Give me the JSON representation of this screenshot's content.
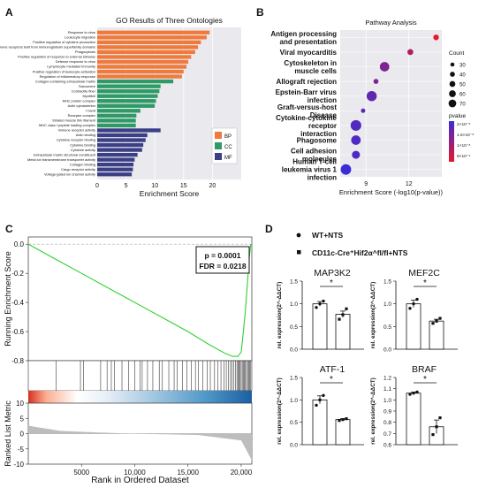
{
  "chart_data": [
    {
      "panel": "A",
      "type": "bar",
      "orientation": "horizontal",
      "title": "GO Results of Three Ontologies",
      "xlabel": "Enrichment Score",
      "xlim": [
        0,
        25
      ],
      "xticks": [
        0,
        5,
        10,
        15,
        20
      ],
      "legend": [
        {
          "label": "BP",
          "color": "#f07a3b"
        },
        {
          "label": "CC",
          "color": "#2e9a66"
        },
        {
          "label": "MF",
          "color": "#3b3f85"
        }
      ],
      "categories": [
        "Response to virus",
        "Leukocyte migration",
        "Positive regulation of cytokine production",
        "Adaptive immune response based on somatic recombination of immune receptors built from immunoglobulin superfamily domains",
        "Phagocytosis",
        "Positive regulation of response to external stimulus",
        "Defense response to virus",
        "Lymphocyte mediated immunity",
        "Positive regulation of leukocyte activation",
        "Regulation of inflammatory response",
        "Collagen-containing extracellular matrix",
        "Sarcomere",
        "Contractile fiber",
        "Myofibril",
        "MHC protein complex",
        "Actin cytoskeleton",
        "I band",
        "Receptor complex",
        "Striated muscle thin filament",
        "MHC class I peptide loading complex",
        "Immune receptor activity",
        "Actin binding",
        "Cytokine receptor binding",
        "Cytokine binding",
        "Cytokine activity",
        "Extracellular matrix structural constituent",
        "Metal ion transmembrane transporter activity",
        "Collagen binding",
        "Cargo receptor activity",
        "Voltage-gated ion channel activity"
      ],
      "groups": [
        "BP",
        "BP",
        "BP",
        "BP",
        "BP",
        "BP",
        "BP",
        "BP",
        "BP",
        "BP",
        "CC",
        "CC",
        "CC",
        "CC",
        "CC",
        "CC",
        "CC",
        "CC",
        "CC",
        "CC",
        "MF",
        "MF",
        "MF",
        "MF",
        "MF",
        "MF",
        "MF",
        "MF",
        "MF",
        "MF"
      ],
      "values": [
        19.5,
        19.0,
        18.0,
        17.5,
        17.0,
        16.3,
        15.8,
        15.5,
        15.0,
        14.7,
        13.2,
        11.0,
        10.8,
        10.5,
        10.2,
        10.0,
        7.5,
        6.8,
        6.7,
        6.7,
        11.0,
        8.7,
        8.4,
        8.0,
        7.8,
        7.0,
        6.5,
        6.3,
        6.2,
        6.0
      ]
    },
    {
      "panel": "B",
      "type": "scatter",
      "title": "Pathway Analysis",
      "xlabel": "Enrichment Score (-log10(p-value))",
      "xlim": [
        7.2,
        14.3
      ],
      "xticks": [
        9,
        12
      ],
      "categories": [
        "Antigen processing and presentation",
        "Viral myocarditis",
        "Cytoskeleton in muscle cells",
        "Allograft rejection",
        "Epstein-Barr virus infection",
        "Graft-versus-host Disease",
        "Cytokine-cytokine receptor interaction",
        "Phagosome",
        "Cell adhesion molecules",
        "Human T-cell leukemia virus 1 infection"
      ],
      "x": [
        13.9,
        12.1,
        10.3,
        9.7,
        9.4,
        8.8,
        8.3,
        8.3,
        8.3,
        7.6
      ],
      "count": [
        22,
        24,
        48,
        18,
        52,
        14,
        56,
        48,
        38,
        54
      ],
      "pvalue_exp": [
        -14,
        -12,
        -10,
        -10,
        -9,
        -9,
        -8.4,
        -8.3,
        -8.3,
        -7.6
      ],
      "size_legend": {
        "title": "Count",
        "values": [
          30,
          40,
          50,
          60,
          70
        ]
      },
      "color_legend": {
        "title": "pvalue",
        "labels": [
          "2×10⁻⁸",
          "1.5×10⁻⁸",
          "1×10⁻⁸",
          "5×10⁻⁹"
        ],
        "colors": [
          "#3b2bd6",
          "#e8172b"
        ]
      }
    },
    {
      "panel": "C",
      "type": "line",
      "ylabel_top": "Running Enrichment Score",
      "ylabel_bottom": "Ranked List Metric",
      "xlabel": "Rank in Ordered Dataset",
      "ylim_top": [
        -0.8,
        0.05
      ],
      "yticks_top": [
        "0.0",
        "-0.2",
        "-0.4",
        "-0.6",
        "-0.8"
      ],
      "ylim_bottom": [
        -10,
        10
      ],
      "yticks_bottom": [
        "10",
        "5",
        "0",
        "-5",
        "-10"
      ],
      "xlim": [
        0,
        21000
      ],
      "xticks": [
        "5000",
        "10,000",
        "15,000",
        "20,000"
      ],
      "annotation": [
        "p = 0.0001",
        "FDR = 0.0218"
      ],
      "curve_x": [
        0,
        500,
        1500,
        3000,
        5000,
        7000,
        9000,
        11000,
        13000,
        15000,
        17000,
        18500,
        19200,
        19700,
        20000,
        20200,
        20400,
        20600,
        20750,
        20900
      ],
      "curve_y": [
        0.0,
        -0.02,
        -0.06,
        -0.12,
        -0.2,
        -0.28,
        -0.36,
        -0.44,
        -0.52,
        -0.6,
        -0.69,
        -0.75,
        -0.77,
        -0.77,
        -0.74,
        -0.6,
        -0.45,
        -0.25,
        -0.1,
        0.0
      ],
      "hits": [
        2600,
        4900,
        5200,
        6800,
        7400,
        7800,
        8100,
        8800,
        9400,
        10000,
        10500,
        10700,
        11200,
        11700,
        12300,
        12600,
        13200,
        13700,
        14000,
        14500,
        14900,
        15300,
        15700,
        16000,
        16400,
        16800,
        17100,
        17500,
        17800,
        18100,
        18400,
        18600,
        18800,
        19000,
        19150,
        19300,
        19450,
        19600,
        19700,
        19800,
        19900,
        20000,
        20100,
        20200,
        20300,
        20400,
        20500,
        20600,
        20700,
        20800,
        20900
      ]
    },
    {
      "panel": "D",
      "type": "bar",
      "legend": [
        "WT+NTS",
        "CD11c-Cre⁺Hif2α^fl/fl+NTS"
      ],
      "ylabel": "rel. expression(2^-ΔΔCT)",
      "subplots": [
        {
          "title": "MAP3K2",
          "ylim": [
            0,
            1.5
          ],
          "yticks": [
            "0.0",
            "0.5",
            "1.0",
            "1.5"
          ],
          "categories": [
            "WT+NTS",
            "CD11c-Cre⁺Hif2α^fl/fl+NTS"
          ],
          "values": [
            1.0,
            0.77
          ],
          "errors": [
            0.05,
            0.07
          ],
          "points": [
            [
              0.92,
              1.0,
              1.06
            ],
            [
              0.66,
              0.76,
              0.89
            ]
          ],
          "significance": "*"
        },
        {
          "title": "MEF2C",
          "ylim": [
            0,
            1.5
          ],
          "yticks": [
            "0.0",
            "0.5",
            "1.0",
            "1.5"
          ],
          "categories": [
            "WT+NTS",
            "CD11c-Cre⁺Hif2α^fl/fl+NTS"
          ],
          "values": [
            1.0,
            0.62
          ],
          "errors": [
            0.08,
            0.04
          ],
          "points": [
            [
              0.9,
              1.0,
              1.1
            ],
            [
              0.57,
              0.62,
              0.68
            ]
          ],
          "significance": "*"
        },
        {
          "title": "ATF-1",
          "ylim": [
            0,
            1.5
          ],
          "yticks": [
            "0.0",
            "0.5",
            "1.0",
            "1.5"
          ],
          "categories": [
            "WT+NTS",
            "CD11c-Cre⁺Hif2α^fl/fl+NTS"
          ],
          "values": [
            1.0,
            0.56
          ],
          "errors": [
            0.09,
            0.02
          ],
          "points": [
            [
              0.88,
              1.0,
              1.1
            ],
            [
              0.54,
              0.56,
              0.58
            ]
          ],
          "significance": "*"
        },
        {
          "title": "BRAF",
          "ylim": [
            0.6,
            1.2
          ],
          "yticks": [
            "0.6",
            "0.7",
            "0.8",
            "0.9",
            "1.0",
            "1.1",
            "1.2"
          ],
          "categories": [
            "WT+NTS",
            "CD11c-Cre⁺Hif2α^fl/fl+NTS"
          ],
          "values": [
            1.06,
            0.76
          ],
          "errors": [
            0.01,
            0.06
          ],
          "points": [
            [
              1.05,
              1.06,
              1.07
            ],
            [
              0.69,
              0.76,
              0.84
            ]
          ],
          "significance": "*"
        }
      ]
    }
  ],
  "panel_labels": [
    "A",
    "B",
    "C",
    "D"
  ]
}
